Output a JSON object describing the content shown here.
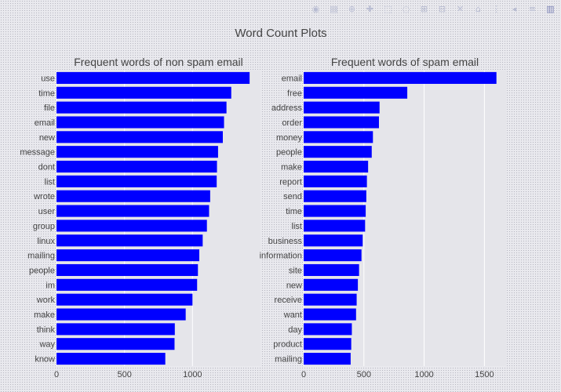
{
  "figure_title": "Word Count Plots",
  "modebar": {
    "icons": [
      "camera-icon",
      "save-icon",
      "zoom-icon",
      "pan-icon",
      "box-select-icon",
      "lasso-icon",
      "zoom-in-icon",
      "zoom-out-icon",
      "autoscale-icon",
      "reset-axes-icon",
      "spike-lines-icon",
      "hover-closest-icon",
      "hover-compare-icon",
      "plotly-logo-icon"
    ],
    "glyphs": [
      "◉",
      "▤",
      "⊕",
      "✚",
      "⬚",
      "◌",
      "⊞",
      "⊟",
      "✕",
      "⌂",
      "⋮",
      "◂",
      "≡",
      "▥"
    ]
  },
  "chart_data": [
    {
      "type": "bar",
      "orientation": "horizontal",
      "title": "Frequent words of non spam email",
      "bar_color": "#0000ff",
      "xlim": [
        0,
        1500
      ],
      "xticks": [
        0,
        500,
        1000
      ],
      "grid": true,
      "categories": [
        "use",
        "time",
        "file",
        "email",
        "new",
        "message",
        "dont",
        "list",
        "wrote",
        "user",
        "group",
        "linux",
        "mailing",
        "people",
        "im",
        "work",
        "make",
        "think",
        "way",
        "know"
      ],
      "values": [
        1420,
        1285,
        1250,
        1232,
        1223,
        1188,
        1180,
        1178,
        1130,
        1122,
        1106,
        1075,
        1050,
        1040,
        1034,
        1000,
        950,
        870,
        868,
        800
      ]
    },
    {
      "type": "bar",
      "orientation": "horizontal",
      "title": "Frequent words of spam email",
      "bar_color": "#0000ff",
      "xlim": [
        0,
        1680
      ],
      "xticks": [
        0,
        500,
        1000,
        1500
      ],
      "grid": true,
      "categories": [
        "email",
        "free",
        "address",
        "order",
        "money",
        "people",
        "make",
        "report",
        "send",
        "time",
        "list",
        "business",
        "information",
        "site",
        "new",
        "receive",
        "want",
        "day",
        "product",
        "mailing"
      ],
      "values": [
        1600,
        860,
        630,
        625,
        575,
        565,
        535,
        525,
        520,
        515,
        510,
        490,
        480,
        460,
        450,
        440,
        435,
        400,
        395,
        390
      ]
    }
  ]
}
